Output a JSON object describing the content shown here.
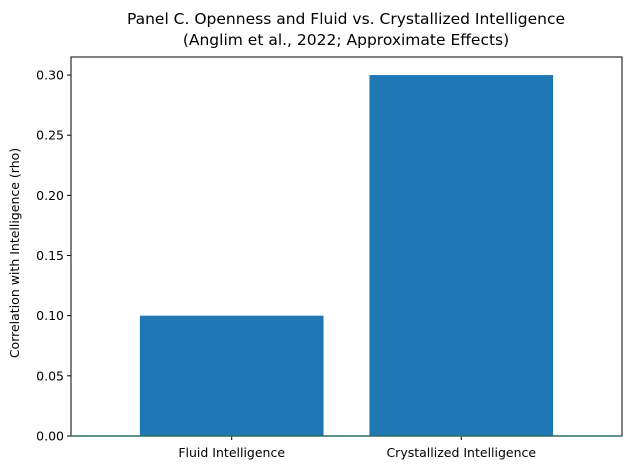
{
  "chart_data": {
    "type": "bar",
    "title": "Panel C. Openness and Fluid vs. Crystallized Intelligence",
    "subtitle": "(Anglim et al., 2022; Approximate Effects)",
    "xlabel": "",
    "ylabel": "Correlation with Intelligence (rho)",
    "categories": [
      "Fluid Intelligence",
      "Crystallized Intelligence"
    ],
    "values": [
      0.1,
      0.3
    ],
    "ylim": [
      0,
      0.315
    ],
    "yticks": [
      0.0,
      0.05,
      0.1,
      0.15,
      0.2,
      0.25,
      0.3
    ],
    "ytick_labels": [
      "0.00",
      "0.05",
      "0.10",
      "0.15",
      "0.20",
      "0.25",
      "0.30"
    ],
    "bar_color": "#1f77b4",
    "baseline_color": "#2e6b66",
    "grid": false,
    "legend": "none"
  }
}
